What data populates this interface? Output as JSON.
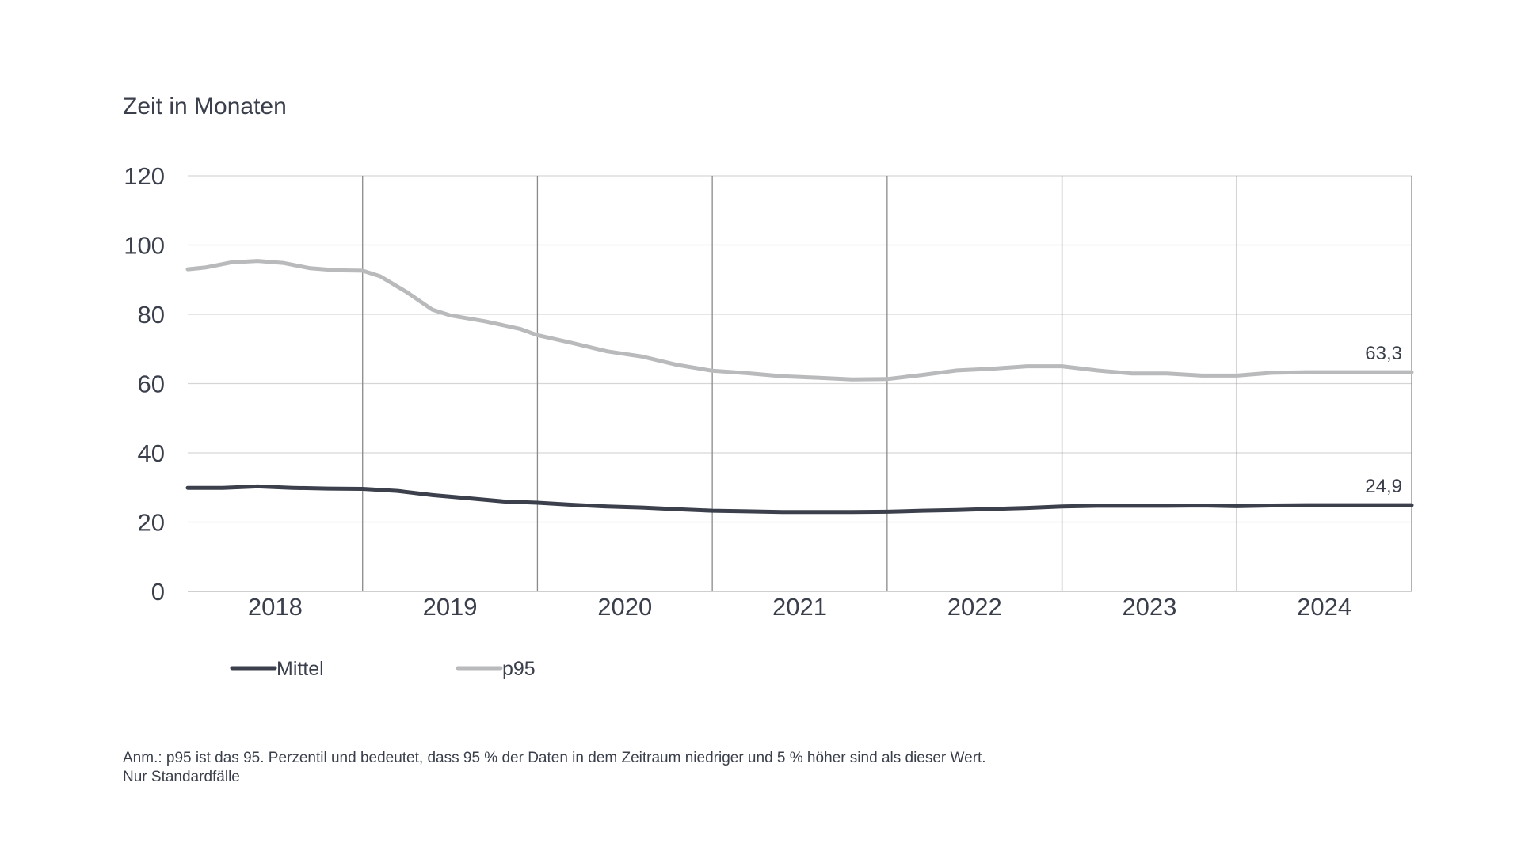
{
  "chart_data": {
    "type": "line",
    "ylabel": "Zeit in Monaten",
    "ylim": [
      0,
      120
    ],
    "yticks": [
      "0",
      "20",
      "40",
      "60",
      "80",
      "100",
      "120"
    ],
    "x_start": 2017.5,
    "x_end": 2024.5,
    "year_labels": [
      "2018",
      "2019",
      "2020",
      "2021",
      "2022",
      "2023",
      "2024"
    ],
    "grid": "horizontal gridlines, vertical year separators",
    "legend_position": "bottom-left",
    "series": [
      {
        "name": "Mittel",
        "color": "#3b404c",
        "end_label": "24,9",
        "points": [
          [
            2017.5,
            29.9
          ],
          [
            2017.7,
            29.9
          ],
          [
            2017.9,
            30.3
          ],
          [
            2018.1,
            29.9
          ],
          [
            2018.3,
            29.7
          ],
          [
            2018.5,
            29.6
          ],
          [
            2018.7,
            29.0
          ],
          [
            2018.9,
            27.8
          ],
          [
            2019.1,
            26.9
          ],
          [
            2019.3,
            26.0
          ],
          [
            2019.5,
            25.6
          ],
          [
            2019.7,
            25.0
          ],
          [
            2019.9,
            24.5
          ],
          [
            2020.1,
            24.2
          ],
          [
            2020.3,
            23.7
          ],
          [
            2020.5,
            23.3
          ],
          [
            2020.7,
            23.1
          ],
          [
            2020.9,
            22.9
          ],
          [
            2021.1,
            22.9
          ],
          [
            2021.3,
            22.9
          ],
          [
            2021.5,
            23.0
          ],
          [
            2021.7,
            23.3
          ],
          [
            2021.9,
            23.5
          ],
          [
            2022.1,
            23.8
          ],
          [
            2022.3,
            24.1
          ],
          [
            2022.5,
            24.5
          ],
          [
            2022.7,
            24.7
          ],
          [
            2022.9,
            24.7
          ],
          [
            2023.1,
            24.7
          ],
          [
            2023.3,
            24.8
          ],
          [
            2023.5,
            24.6
          ],
          [
            2023.7,
            24.8
          ],
          [
            2023.9,
            24.9
          ],
          [
            2024.1,
            24.9
          ],
          [
            2024.3,
            24.9
          ],
          [
            2024.5,
            24.9
          ]
        ]
      },
      {
        "name": "p95",
        "color": "#b9babc",
        "end_label": "63,3",
        "points": [
          [
            2017.5,
            93.0
          ],
          [
            2017.6,
            93.5
          ],
          [
            2017.75,
            95.0
          ],
          [
            2017.9,
            95.4
          ],
          [
            2018.05,
            94.8
          ],
          [
            2018.2,
            93.3
          ],
          [
            2018.35,
            92.7
          ],
          [
            2018.5,
            92.6
          ],
          [
            2018.6,
            91.0
          ],
          [
            2018.75,
            86.5
          ],
          [
            2018.9,
            81.3
          ],
          [
            2019.0,
            79.7
          ],
          [
            2019.2,
            78.0
          ],
          [
            2019.4,
            75.8
          ],
          [
            2019.5,
            74.0
          ],
          [
            2019.7,
            71.7
          ],
          [
            2019.9,
            69.3
          ],
          [
            2020.1,
            67.8
          ],
          [
            2020.3,
            65.4
          ],
          [
            2020.5,
            63.7
          ],
          [
            2020.7,
            63.0
          ],
          [
            2020.9,
            62.1
          ],
          [
            2021.1,
            61.7
          ],
          [
            2021.3,
            61.2
          ],
          [
            2021.5,
            61.3
          ],
          [
            2021.7,
            62.5
          ],
          [
            2021.9,
            63.8
          ],
          [
            2022.1,
            64.3
          ],
          [
            2022.3,
            65.0
          ],
          [
            2022.5,
            65.0
          ],
          [
            2022.7,
            63.8
          ],
          [
            2022.9,
            62.9
          ],
          [
            2023.1,
            62.9
          ],
          [
            2023.3,
            62.3
          ],
          [
            2023.5,
            62.3
          ],
          [
            2023.7,
            63.1
          ],
          [
            2023.9,
            63.3
          ],
          [
            2024.1,
            63.3
          ],
          [
            2024.3,
            63.3
          ],
          [
            2024.5,
            63.3
          ]
        ]
      }
    ]
  },
  "note": {
    "line1": "Anm.: p95 ist das 95. Perzentil und bedeutet, dass 95 % der Daten in dem Zeitraum niedriger und 5 % höher sind als dieser Wert.",
    "line2": "Nur Standardfälle"
  }
}
